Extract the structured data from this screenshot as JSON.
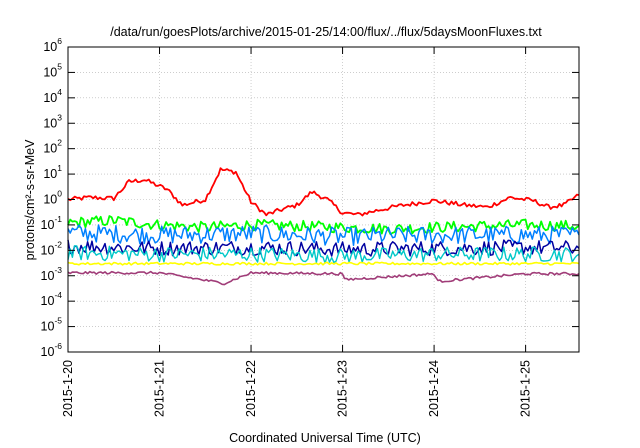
{
  "chart_data": {
    "type": "line",
    "title": "/data/run/goesPlots/archive/2015-01-25/14:00/flux/../flux/5daysMoonFluxes.txt",
    "xlabel": "Coordinated Universal Time (UTC)",
    "ylabel": "protons/cm²-s-sr-MeV",
    "yscale": "log",
    "ylim": [
      1e-06,
      1000000.0
    ],
    "y_ticks": [
      {
        "base": "10",
        "exp": "-6"
      },
      {
        "base": "10",
        "exp": "-5"
      },
      {
        "base": "10",
        "exp": "-4"
      },
      {
        "base": "10",
        "exp": "-3"
      },
      {
        "base": "10",
        "exp": "-2"
      },
      {
        "base": "10",
        "exp": "-1"
      },
      {
        "base": "10",
        "exp": "0"
      },
      {
        "base": "10",
        "exp": "1"
      },
      {
        "base": "10",
        "exp": "2"
      },
      {
        "base": "10",
        "exp": "3"
      },
      {
        "base": "10",
        "exp": "4"
      },
      {
        "base": "10",
        "exp": "5"
      },
      {
        "base": "10",
        "exp": "6"
      }
    ],
    "x_ticks": [
      "2015-1-20",
      "2015-1-21",
      "2015-1-22",
      "2015-1-23",
      "2015-1-24",
      "2015-1-25"
    ],
    "xlim": [
      "2015-01-20T00:00",
      "2015-01-25T14:00"
    ],
    "grid": true,
    "series": [
      {
        "color": "#ff0000",
        "points": [
          [
            "2015-01-20T00:00",
            1.0
          ],
          [
            "2015-01-20T06:00",
            1.2
          ],
          [
            "2015-01-20T12:00",
            1.1
          ],
          [
            "2015-01-20T16:00",
            5.0
          ],
          [
            "2015-01-20T20:00",
            6.0
          ],
          [
            "2015-01-21T02:00",
            2.5
          ],
          [
            "2015-01-21T06:00",
            0.6
          ],
          [
            "2015-01-21T12:00",
            1.0
          ],
          [
            "2015-01-21T16:00",
            15.0
          ],
          [
            "2015-01-21T20:00",
            12.0
          ],
          [
            "2015-01-22T00:00",
            0.8
          ],
          [
            "2015-01-22T04:00",
            0.25
          ],
          [
            "2015-01-22T08:00",
            0.4
          ],
          [
            "2015-01-22T12:00",
            0.6
          ],
          [
            "2015-01-22T16:00",
            2.0
          ],
          [
            "2015-01-22T20:00",
            1.0
          ],
          [
            "2015-01-23T00:00",
            0.3
          ],
          [
            "2015-01-23T04:00",
            0.25
          ],
          [
            "2015-01-23T10:00",
            0.4
          ],
          [
            "2015-01-23T16:00",
            0.6
          ],
          [
            "2015-01-24T00:00",
            0.9
          ],
          [
            "2015-01-24T08:00",
            0.6
          ],
          [
            "2015-01-24T14:00",
            0.5
          ],
          [
            "2015-01-24T20:00",
            1.2
          ],
          [
            "2015-01-25T02:00",
            0.9
          ],
          [
            "2015-01-25T06:00",
            0.5
          ],
          [
            "2015-01-25T10:00",
            0.6
          ],
          [
            "2015-01-25T14:00",
            1.5
          ]
        ]
      },
      {
        "color": "#00ff00",
        "points": [
          [
            "2015-01-20T00:00",
            0.12
          ],
          [
            "2015-01-20T12:00",
            0.15
          ],
          [
            "2015-01-21T00:00",
            0.1
          ],
          [
            "2015-01-21T12:00",
            0.08
          ],
          [
            "2015-01-22T00:00",
            0.1
          ],
          [
            "2015-01-22T12:00",
            0.09
          ],
          [
            "2015-01-23T00:00",
            0.08
          ],
          [
            "2015-01-23T12:00",
            0.07
          ],
          [
            "2015-01-24T00:00",
            0.08
          ],
          [
            "2015-01-24T12:00",
            0.09
          ],
          [
            "2015-01-25T00:00",
            0.1
          ],
          [
            "2015-01-25T14:00",
            0.09
          ]
        ]
      },
      {
        "color": "#0080ff",
        "points": [
          [
            "2015-01-20T00:00",
            0.05
          ],
          [
            "2015-01-21T00:00",
            0.04
          ],
          [
            "2015-01-22T00:00",
            0.045
          ],
          [
            "2015-01-23T00:00",
            0.035
          ],
          [
            "2015-01-24T00:00",
            0.04
          ],
          [
            "2015-01-25T00:00",
            0.04
          ],
          [
            "2015-01-25T14:00",
            0.04
          ]
        ]
      },
      {
        "color": "#0000a0",
        "points": [
          [
            "2015-01-20T00:00",
            0.015
          ],
          [
            "2015-01-21T00:00",
            0.012
          ],
          [
            "2015-01-22T00:00",
            0.013
          ],
          [
            "2015-01-23T00:00",
            0.011
          ],
          [
            "2015-01-24T00:00",
            0.012
          ],
          [
            "2015-01-25T00:00",
            0.013
          ],
          [
            "2015-01-25T14:00",
            0.012
          ]
        ]
      },
      {
        "color": "#00c8c8",
        "points": [
          [
            "2015-01-20T00:00",
            0.008
          ],
          [
            "2015-01-21T00:00",
            0.007
          ],
          [
            "2015-01-22T00:00",
            0.007
          ],
          [
            "2015-01-23T00:00",
            0.006
          ],
          [
            "2015-01-24T00:00",
            0.007
          ],
          [
            "2015-01-25T00:00",
            0.007
          ],
          [
            "2015-01-25T14:00",
            0.007
          ]
        ]
      },
      {
        "color": "#ffff00",
        "points": [
          [
            "2015-01-20T00:00",
            0.003
          ],
          [
            "2015-01-21T00:00",
            0.003
          ],
          [
            "2015-01-22T00:00",
            0.003
          ],
          [
            "2015-01-23T00:00",
            0.003
          ],
          [
            "2015-01-24T00:00",
            0.003
          ],
          [
            "2015-01-25T00:00",
            0.003
          ],
          [
            "2015-01-25T14:00",
            0.003
          ]
        ]
      },
      {
        "color": "#a03c78",
        "points": [
          [
            "2015-01-20T00:00",
            0.0013
          ],
          [
            "2015-01-21T00:00",
            0.0013
          ],
          [
            "2015-01-21T17:00",
            0.0005
          ],
          [
            "2015-01-22T00:00",
            0.0013
          ],
          [
            "2015-01-23T00:00",
            0.0012
          ],
          [
            "2015-01-23T00:30",
            0.0007
          ],
          [
            "2015-01-24T00:00",
            0.0012
          ],
          [
            "2015-01-24T01:00",
            0.0006
          ],
          [
            "2015-01-25T00:00",
            0.0012
          ],
          [
            "2015-01-25T14:00",
            0.0012
          ]
        ]
      }
    ]
  }
}
